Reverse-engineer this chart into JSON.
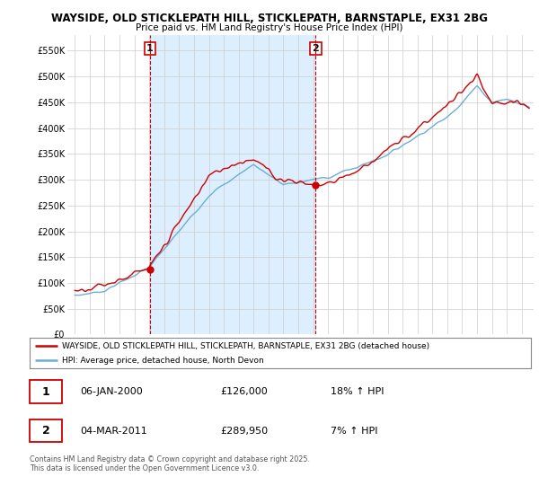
{
  "title_line1": "WAYSIDE, OLD STICKLEPATH HILL, STICKLEPATH, BARNSTAPLE, EX31 2BG",
  "title_line2": "Price paid vs. HM Land Registry's House Price Index (HPI)",
  "ylabel_ticks": [
    "£0",
    "£50K",
    "£100K",
    "£150K",
    "£200K",
    "£250K",
    "£300K",
    "£350K",
    "£400K",
    "£450K",
    "£500K",
    "£550K"
  ],
  "ytick_values": [
    0,
    50000,
    100000,
    150000,
    200000,
    250000,
    300000,
    350000,
    400000,
    450000,
    500000,
    550000
  ],
  "hpi_color": "#6baed6",
  "price_color": "#cc0000",
  "shade_color": "#ddeeff",
  "marker1_x": 2000.04,
  "marker2_x": 2011.17,
  "sale1_price": 126000,
  "sale2_price": 289950,
  "legend_house": "WAYSIDE, OLD STICKLEPATH HILL, STICKLEPATH, BARNSTAPLE, EX31 2BG (detached house)",
  "legend_hpi": "HPI: Average price, detached house, North Devon",
  "ann1_label": "1",
  "ann2_label": "2",
  "table_row1": [
    "1",
    "06-JAN-2000",
    "£126,000",
    "18% ↑ HPI"
  ],
  "table_row2": [
    "2",
    "04-MAR-2011",
    "£289,950",
    "7% ↑ HPI"
  ],
  "footer": "Contains HM Land Registry data © Crown copyright and database right 2025.\nThis data is licensed under the Open Government Licence v3.0.",
  "background_color": "#ffffff",
  "ylim_min": 0,
  "ylim_max": 580000,
  "xlim_start": 1994.5,
  "xlim_end": 2025.8
}
